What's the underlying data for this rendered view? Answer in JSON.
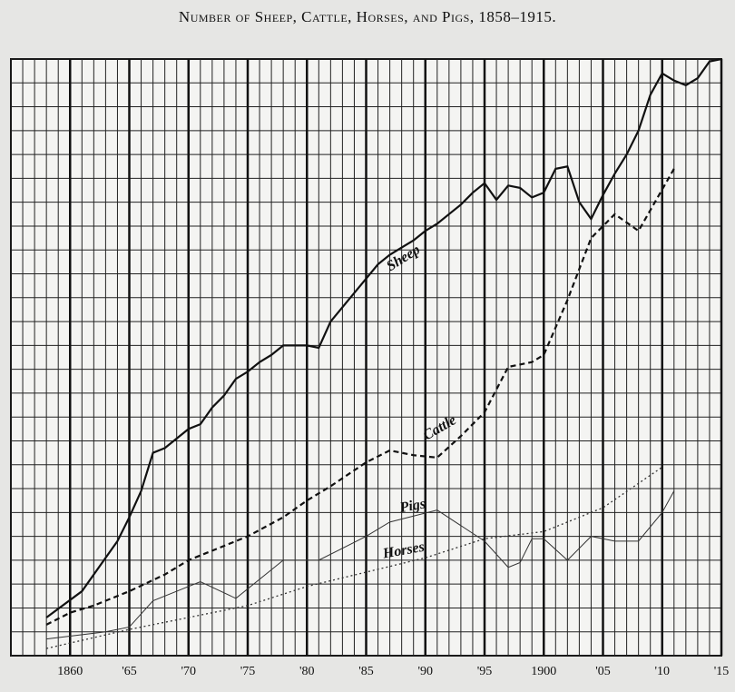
{
  "chart_data": {
    "type": "line",
    "title": "Number of Sheep, Cattle, Horses, and Pigs, 1858–1915.",
    "xlim": [
      1855,
      1915
    ],
    "ylim": [
      0,
      25
    ],
    "grid": true,
    "xticks": [
      1860,
      {
        "value": 1865,
        "label": "'65"
      },
      {
        "value": 1870,
        "label": "'70"
      },
      {
        "value": 1875,
        "label": "'75"
      },
      {
        "value": 1880,
        "label": "'80"
      },
      {
        "value": 1885,
        "label": "'85"
      },
      {
        "value": 1890,
        "label": "'90"
      },
      {
        "value": 1895,
        "label": "'95"
      },
      1900,
      {
        "value": 1905,
        "label": "'05"
      },
      {
        "value": 1910,
        "label": "'10"
      },
      {
        "value": 1915,
        "label": "'15"
      }
    ],
    "series": [
      {
        "name": "Sheep",
        "color": "#111111",
        "x": [
          1858,
          1861,
          1864,
          1865,
          1866,
          1867,
          1868,
          1869,
          1870,
          1871,
          1872,
          1873,
          1874,
          1875,
          1876,
          1877,
          1878,
          1879,
          1880,
          1881,
          1882,
          1883,
          1884,
          1885,
          1886,
          1887,
          1888,
          1889,
          1890,
          1891,
          1892,
          1893,
          1894,
          1895,
          1896,
          1897,
          1898,
          1899,
          1900,
          1901,
          1902,
          1903,
          1904,
          1905,
          1906,
          1907,
          1908,
          1909,
          1910,
          1911,
          1912,
          1913,
          1914,
          1915
        ],
        "values": [
          1.6,
          2.7,
          4.8,
          5.8,
          6.9,
          8.5,
          8.7,
          9.1,
          9.5,
          9.7,
          10.4,
          10.9,
          11.6,
          11.9,
          12.3,
          12.6,
          13.0,
          13.0,
          13.0,
          12.9,
          14.0,
          14.6,
          15.2,
          15.8,
          16.4,
          16.8,
          17.1,
          17.4,
          17.8,
          18.1,
          18.5,
          18.9,
          19.4,
          19.8,
          19.1,
          19.7,
          19.6,
          19.2,
          19.4,
          20.4,
          20.5,
          19.0,
          18.3,
          19.3,
          20.2,
          21.0,
          22.0,
          23.5,
          24.4,
          24.1,
          23.9,
          24.2,
          24.9,
          25.0
        ]
      },
      {
        "name": "Cattle",
        "color": "#111111",
        "x": [
          1858,
          1860,
          1862,
          1865,
          1868,
          1870,
          1875,
          1878,
          1880,
          1882,
          1885,
          1887,
          1889,
          1891,
          1893,
          1895,
          1897,
          1899,
          1900,
          1902,
          1904,
          1906,
          1908,
          1911
        ],
        "values": [
          1.3,
          1.8,
          2.1,
          2.7,
          3.4,
          4.0,
          5.0,
          5.8,
          6.5,
          7.1,
          8.1,
          8.6,
          8.4,
          8.3,
          9.2,
          10.2,
          12.1,
          12.3,
          12.6,
          14.9,
          17.5,
          18.5,
          17.8,
          20.4
        ]
      },
      {
        "name": "Pigs",
        "color": "#333333",
        "x": [
          1858,
          1863,
          1865,
          1867,
          1869,
          1871,
          1874,
          1878,
          1881,
          1885,
          1887,
          1891,
          1895,
          1897,
          1898,
          1899,
          1900,
          1902,
          1904,
          1906,
          1908,
          1910,
          1911
        ],
        "values": [
          0.7,
          1.0,
          1.2,
          2.3,
          2.7,
          3.1,
          2.4,
          4.0,
          4.0,
          5.0,
          5.6,
          6.1,
          4.8,
          3.7,
          3.9,
          4.9,
          4.9,
          4.0,
          5.0,
          4.8,
          4.8,
          6.0,
          6.9
        ]
      },
      {
        "name": "Horses",
        "color": "#333333",
        "x": [
          1858,
          1865,
          1870,
          1875,
          1880,
          1885,
          1890,
          1895,
          1900,
          1905,
          1910
        ],
        "values": [
          0.3,
          1.1,
          1.6,
          2.1,
          2.9,
          3.5,
          4.1,
          4.9,
          5.2,
          6.2,
          7.9
        ]
      }
    ]
  }
}
